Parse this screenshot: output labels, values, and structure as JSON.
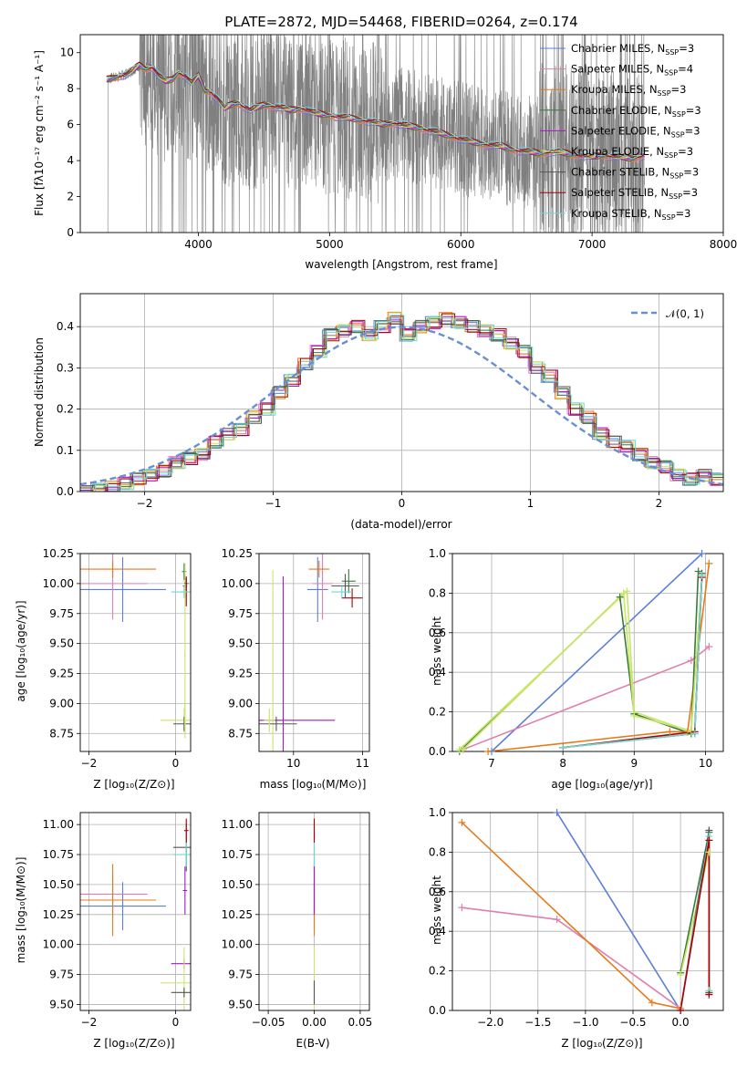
{
  "palette": {
    "chabrier_miles": "#5b7fd8",
    "salpeter_miles": "#e07fae",
    "kroupa_miles": "#e67a19",
    "chabrier_elodie": "#3a7a3a",
    "salpeter_elodie": "#a218c8",
    "kroupa_elodie": "#c8e66a",
    "chabrier_stelib": "#555555",
    "salpeter_stelib": "#aa0000",
    "kroupa_stelib": "#6fd6d6",
    "data_gray": "#808080",
    "normal": "#6a8ed4",
    "grid": "#b0b0b0"
  },
  "chart_data": [
    {
      "type": "line",
      "title": "PLATE=2872, MJD=54468, FIBERID=0264, z=0.174",
      "xlabel": "wavelength [Angstrom, rest frame]",
      "ylabel": "Flux [fλ10⁻¹⁷ erg cm⁻² s⁻¹ A⁻¹]",
      "xlim": [
        3100,
        8000
      ],
      "ylim": [
        0,
        11
      ],
      "xticks": [
        "4000",
        "5000",
        "6000",
        "7000",
        "8000"
      ],
      "yticks": [
        "0",
        "2",
        "4",
        "6",
        "8",
        "10"
      ],
      "grid": false,
      "legend_position": "upper right",
      "legend": [
        {
          "main": "Chabrier MILES, N",
          "sub": "SSP",
          "tail": "=3",
          "color_key": "chabrier_miles"
        },
        {
          "main": "Salpeter MILES, N",
          "sub": "SSP",
          "tail": "=4",
          "color_key": "salpeter_miles"
        },
        {
          "main": "Kroupa MILES, N",
          "sub": "SSP",
          "tail": "=3",
          "color_key": "kroupa_miles"
        },
        {
          "main": "Chabrier ELODIE, N",
          "sub": "SSP",
          "tail": "=3",
          "color_key": "chabrier_elodie"
        },
        {
          "main": "Salpeter ELODIE, N",
          "sub": "SSP",
          "tail": "=3",
          "color_key": "salpeter_elodie"
        },
        {
          "main": "Kroupa ELODIE, N",
          "sub": "SSP",
          "tail": "=3",
          "color_key": "kroupa_elodie"
        },
        {
          "main": "Chabrier STELIB, N",
          "sub": "SSP",
          "tail": "=3",
          "color_key": "chabrier_stelib"
        },
        {
          "main": "Salpeter STELIB, N",
          "sub": "SSP",
          "tail": "=3",
          "color_key": "salpeter_stelib"
        },
        {
          "main": "Kroupa STELIB, N",
          "sub": "SSP",
          "tail": "=3",
          "color_key": "kroupa_stelib"
        }
      ],
      "model_continuum": {
        "x": [
          3300,
          3350,
          3400,
          3450,
          3500,
          3550,
          3600,
          3650,
          3700,
          3750,
          3800,
          3850,
          3900,
          3950,
          4000,
          4050,
          4100,
          4150,
          4200,
          4250,
          4300,
          4350,
          4400,
          4500,
          4600,
          4700,
          4800,
          4900,
          5000,
          5100,
          5200,
          5300,
          5400,
          5500,
          5600,
          5700,
          5800,
          5900,
          6000,
          6100,
          6200,
          6300,
          6400,
          6500,
          6600,
          6700,
          6800,
          6900,
          7000,
          7100,
          7200,
          7300,
          7400
        ],
        "y": [
          8.5,
          8.6,
          8.7,
          8.8,
          9.0,
          9.3,
          9.1,
          9.2,
          8.7,
          8.4,
          8.5,
          8.9,
          8.7,
          8.3,
          8.7,
          7.9,
          7.8,
          7.4,
          6.9,
          7.1,
          7.2,
          7.0,
          6.8,
          7.1,
          7.0,
          6.8,
          6.9,
          6.6,
          6.5,
          6.4,
          6.3,
          6.2,
          6.0,
          6.1,
          5.9,
          5.8,
          5.6,
          5.4,
          5.2,
          5.0,
          4.9,
          4.8,
          4.6,
          4.5,
          4.4,
          4.5,
          4.4,
          4.3,
          4.2,
          4.3,
          4.2,
          4.1,
          4.3
        ]
      },
      "noisy_data_range": [
        3300,
        7400
      ]
    },
    {
      "type": "step",
      "xlabel": "(data-model)/error",
      "ylabel": "Normed distribution",
      "xlim": [
        -2.5,
        2.5
      ],
      "ylim": [
        0,
        0.48
      ],
      "xticks": [
        "−2",
        "−1",
        "0",
        "1",
        "2"
      ],
      "yticks": [
        "0.0",
        "0.1",
        "0.2",
        "0.3",
        "0.4"
      ],
      "grid": true,
      "legend_position": "upper right",
      "normal_label": "𝒩(0, 1)",
      "bin_edges": [
        -2.5,
        -2.4,
        -2.3,
        -2.2,
        -2.1,
        -2.0,
        -1.9,
        -1.8,
        -1.7,
        -1.6,
        -1.5,
        -1.4,
        -1.3,
        -1.2,
        -1.1,
        -1.0,
        -0.9,
        -0.8,
        -0.7,
        -0.6,
        -0.5,
        -0.4,
        -0.3,
        -0.2,
        -0.1,
        0.0,
        0.1,
        0.2,
        0.3,
        0.4,
        0.5,
        0.6,
        0.7,
        0.8,
        0.9,
        1.0,
        1.1,
        1.2,
        1.3,
        1.4,
        1.5,
        1.6,
        1.7,
        1.8,
        1.9,
        2.0,
        2.1,
        2.2,
        2.3,
        2.4,
        2.5
      ],
      "base_density": [
        0.0,
        0.005,
        0.01,
        0.02,
        0.03,
        0.04,
        0.05,
        0.07,
        0.08,
        0.09,
        0.12,
        0.14,
        0.15,
        0.18,
        0.2,
        0.24,
        0.27,
        0.31,
        0.34,
        0.38,
        0.39,
        0.4,
        0.38,
        0.4,
        0.42,
        0.38,
        0.4,
        0.41,
        0.42,
        0.41,
        0.4,
        0.39,
        0.38,
        0.36,
        0.34,
        0.3,
        0.28,
        0.24,
        0.2,
        0.18,
        0.14,
        0.12,
        0.11,
        0.09,
        0.07,
        0.06,
        0.04,
        0.03,
        0.04,
        0.03
      ]
    },
    {
      "type": "error_bars",
      "xlabel": "Z [log₁₀(Z/Z⊙)]",
      "ylabel": "age  [log₁₀(age/yr)]",
      "xlim": [
        -2.2,
        0.35
      ],
      "ylim": [
        8.6,
        10.25
      ],
      "xticks": [
        "−2",
        "0"
      ],
      "yticks": [
        "8.75",
        "9.00",
        "9.25",
        "9.50",
        "9.75",
        "10.00",
        "10.25"
      ],
      "grid": true,
      "points": [
        {
          "x": -1.22,
          "y": 9.95,
          "xerr": 1.0,
          "yerr": 0.27,
          "color_key": "chabrier_miles"
        },
        {
          "x": -1.45,
          "y": 10.0,
          "xerr": 0.8,
          "yerr": 0.3,
          "color_key": "salpeter_miles"
        },
        {
          "x": -1.45,
          "y": 10.12,
          "xerr": 1.0,
          "yerr": 0.07,
          "color_key": "kroupa_miles"
        },
        {
          "x": 0.2,
          "y": 10.1,
          "xerr": 0.05,
          "yerr": 0.07,
          "color_key": "chabrier_elodie"
        },
        {
          "x": 0.22,
          "y": 9.98,
          "xerr": 0.05,
          "yerr": 0.1,
          "color_key": "salpeter_elodie"
        },
        {
          "x": 0.22,
          "y": 10.02,
          "xerr": 0.05,
          "yerr": 0.15,
          "color_key": "kroupa_elodie"
        },
        {
          "x": 0.25,
          "y": 10.0,
          "xerr": 0.05,
          "yerr": 0.06,
          "color_key": "chabrier_stelib"
        },
        {
          "x": 0.25,
          "y": 9.93,
          "xerr": 0.05,
          "yerr": 0.12,
          "color_key": "salpeter_stelib"
        },
        {
          "x": 0.2,
          "y": 9.93,
          "xerr": 0.3,
          "yerr": 0.05,
          "color_key": "kroupa_stelib"
        },
        {
          "x": 0.2,
          "y": 8.86,
          "xerr": 0.55,
          "yerr": 0.1,
          "color_key": "kroupa_elodie"
        },
        {
          "x": 0.2,
          "y": 8.83,
          "xerr": 0.25,
          "yerr": 0.06,
          "color_key": "chabrier_stelib"
        },
        {
          "x": 0.22,
          "y": 8.86,
          "xerr": 0.02,
          "yerr": 0.15,
          "color_key": "kroupa_elodie"
        },
        {
          "x": 0.22,
          "y": 9.4,
          "xerr": 0.02,
          "yerr": 0.6,
          "color_key": "kroupa_elodie"
        }
      ]
    },
    {
      "type": "error_bars",
      "xlabel": "mass [log₁₀(M/M⊙)]",
      "xlim": [
        9.5,
        11.1
      ],
      "ylim": [
        8.6,
        10.25
      ],
      "xticks": [
        "10",
        "11"
      ],
      "yticks": [
        "8.75",
        "9.00",
        "9.25",
        "9.50",
        "9.75",
        "10.00",
        "10.25"
      ],
      "grid": true,
      "points": [
        {
          "x": 10.35,
          "y": 9.95,
          "xerr": 0.15,
          "yerr": 0.27,
          "color_key": "chabrier_miles"
        },
        {
          "x": 10.42,
          "y": 10.0,
          "xerr": 0.15,
          "yerr": 0.3,
          "color_key": "salpeter_miles"
        },
        {
          "x": 10.37,
          "y": 10.12,
          "xerr": 0.15,
          "yerr": 0.07,
          "color_key": "kroupa_miles"
        },
        {
          "x": 10.8,
          "y": 10.02,
          "xerr": 0.1,
          "yerr": 0.1,
          "color_key": "chabrier_elodie"
        },
        {
          "x": 10.85,
          "y": 9.88,
          "xerr": 0.15,
          "yerr": 0.08,
          "color_key": "salpeter_stelib"
        },
        {
          "x": 10.75,
          "y": 9.98,
          "xerr": 0.2,
          "yerr": 0.1,
          "color_key": "chabrier_stelib"
        },
        {
          "x": 10.7,
          "y": 9.93,
          "xerr": 0.15,
          "yerr": 0.05,
          "color_key": "kroupa_stelib"
        },
        {
          "x": 9.7,
          "y": 8.86,
          "xerr": 0.1,
          "yerr": 1.25,
          "color_key": "kroupa_elodie"
        },
        {
          "x": 9.85,
          "y": 8.86,
          "xerr": 0.75,
          "yerr": 1.2,
          "color_key": "salpeter_elodie"
        },
        {
          "x": 9.75,
          "y": 8.83,
          "xerr": 0.3,
          "yerr": 0.06,
          "color_key": "chabrier_stelib"
        },
        {
          "x": 9.65,
          "y": 8.86,
          "xerr": 0.08,
          "yerr": 0.1,
          "color_key": "kroupa_elodie"
        }
      ]
    },
    {
      "type": "line",
      "xlabel": "age  [log₁₀(age/yr)]",
      "ylabel": "mass weight",
      "xlim": [
        6.45,
        10.25
      ],
      "ylim": [
        0,
        1
      ],
      "xticks": [
        "7",
        "8",
        "9",
        "10"
      ],
      "yticks": [
        "0.0",
        "0.2",
        "0.4",
        "0.6",
        "0.8",
        "1.0"
      ],
      "grid": true,
      "series": [
        {
          "x": [
            7.0,
            9.95
          ],
          "y": [
            0.0,
            1.0
          ],
          "color_key": "chabrier_miles"
        },
        {
          "x": [
            6.6,
            9.8,
            10.05
          ],
          "y": [
            0.01,
            0.46,
            0.53
          ],
          "color_key": "salpeter_miles"
        },
        {
          "x": [
            6.95,
            9.5,
            9.75,
            10.05
          ],
          "y": [
            0.0,
            0.1,
            0.1,
            0.95
          ],
          "color_key": "kroupa_miles"
        },
        {
          "x": [
            6.55,
            8.8,
            9.0,
            9.8,
            9.9
          ],
          "y": [
            0.0,
            0.78,
            0.19,
            0.09,
            0.91
          ],
          "color_key": "chabrier_elodie"
        },
        {
          "x": [
            6.6,
            8.85,
            9.0,
            9.85,
            9.95
          ],
          "y": [
            0.01,
            0.8,
            0.18,
            0.1,
            0.9
          ],
          "color_key": "kroupa_elodie"
        },
        {
          "x": [
            6.55,
            8.9,
            9.0,
            9.8,
            9.95
          ],
          "y": [
            0.01,
            0.81,
            0.2,
            0.1,
            0.88
          ],
          "color_key": "kroupa_elodie"
        },
        {
          "x": [
            8.0,
            9.85,
            9.95
          ],
          "y": [
            0.02,
            0.09,
            0.9
          ],
          "color_key": "chabrier_stelib"
        },
        {
          "x": [
            8.0,
            9.85,
            9.95
          ],
          "y": [
            0.02,
            0.1,
            0.88
          ],
          "color_key": "salpeter_stelib"
        },
        {
          "x": [
            8.0,
            9.85,
            9.95
          ],
          "y": [
            0.02,
            0.09,
            0.89
          ],
          "color_key": "kroupa_stelib"
        }
      ]
    },
    {
      "type": "error_bars",
      "xlabel": "Z [log₁₀(Z/Z⊙)]",
      "ylabel": "mass [log₁₀(M/M⊙)]",
      "xlim": [
        -2.2,
        0.35
      ],
      "ylim": [
        9.45,
        11.1
      ],
      "xticks": [
        "−2",
        "0"
      ],
      "yticks": [
        "9.50",
        "9.75",
        "10.00",
        "10.25",
        "10.50",
        "10.75",
        "11.00"
      ],
      "grid": true,
      "points": [
        {
          "x": -1.22,
          "y": 10.32,
          "xerr": 1.0,
          "yerr": 0.2,
          "color_key": "chabrier_miles"
        },
        {
          "x": -1.45,
          "y": 10.42,
          "xerr": 0.8,
          "yerr": 0.18,
          "color_key": "salpeter_miles"
        },
        {
          "x": -1.45,
          "y": 10.37,
          "xerr": 1.0,
          "yerr": 0.3,
          "color_key": "kroupa_miles"
        },
        {
          "x": 0.25,
          "y": 10.81,
          "xerr": 0.3,
          "yerr": 0.2,
          "color_key": "chabrier_stelib"
        },
        {
          "x": 0.25,
          "y": 10.75,
          "xerr": 0.3,
          "yerr": 0.1,
          "color_key": "kroupa_stelib"
        },
        {
          "x": 0.25,
          "y": 10.95,
          "xerr": 0.05,
          "yerr": 0.1,
          "color_key": "salpeter_stelib"
        },
        {
          "x": 0.22,
          "y": 10.45,
          "xerr": 0.05,
          "yerr": 0.2,
          "color_key": "salpeter_elodie"
        },
        {
          "x": 0.2,
          "y": 9.84,
          "xerr": 0.3,
          "yerr": 0.04,
          "color_key": "salpeter_elodie"
        },
        {
          "x": 0.2,
          "y": 9.68,
          "xerr": 0.55,
          "yerr": 0.3,
          "color_key": "kroupa_elodie"
        },
        {
          "x": 0.2,
          "y": 9.6,
          "xerr": 0.3,
          "yerr": 0.04,
          "color_key": "chabrier_stelib"
        }
      ]
    },
    {
      "type": "error_bars",
      "xlabel": "E(B-V)",
      "xlim": [
        -0.06,
        0.06
      ],
      "ylim": [
        9.45,
        11.1
      ],
      "xticks": [
        "−0.05",
        "0.00",
        "0.05"
      ],
      "yticks": [
        "9.50",
        "9.75",
        "10.00",
        "10.25",
        "10.50",
        "10.75",
        "11.00"
      ],
      "grid": true,
      "points": [
        {
          "x": 0.0,
          "y": 10.32,
          "xerr": 0.0,
          "yerr": 0.2,
          "color_key": "chabrier_miles"
        },
        {
          "x": 0.0,
          "y": 10.42,
          "xerr": 0.0,
          "yerr": 0.18,
          "color_key": "salpeter_miles"
        },
        {
          "x": 0.0,
          "y": 10.37,
          "xerr": 0.0,
          "yerr": 0.3,
          "color_key": "kroupa_miles"
        },
        {
          "x": 0.0,
          "y": 10.81,
          "xerr": 0.0,
          "yerr": 0.2,
          "color_key": "chabrier_stelib"
        },
        {
          "x": 0.0,
          "y": 10.75,
          "xerr": 0.0,
          "yerr": 0.1,
          "color_key": "kroupa_stelib"
        },
        {
          "x": 0.0,
          "y": 10.95,
          "xerr": 0.0,
          "yerr": 0.1,
          "color_key": "salpeter_stelib"
        },
        {
          "x": 0.0,
          "y": 10.45,
          "xerr": 0.0,
          "yerr": 0.2,
          "color_key": "salpeter_elodie"
        },
        {
          "x": 0.0,
          "y": 9.68,
          "xerr": 0.0,
          "yerr": 0.3,
          "color_key": "kroupa_elodie"
        },
        {
          "x": 0.0,
          "y": 9.6,
          "xerr": 0.0,
          "yerr": 0.1,
          "color_key": "chabrier_stelib"
        }
      ]
    },
    {
      "type": "line",
      "xlabel": "Z [log₁₀(Z/Z⊙)]",
      "ylabel": "mass weight",
      "xlim": [
        -2.4,
        0.45
      ],
      "ylim": [
        0,
        1
      ],
      "xticks": [
        "−2.0",
        "−1.5",
        "−1.0",
        "−0.5",
        "0.0"
      ],
      "yticks": [
        "0.0",
        "0.2",
        "0.4",
        "0.6",
        "0.8",
        "1.0"
      ],
      "grid": true,
      "series": [
        {
          "x": [
            -1.3,
            0.0
          ],
          "y": [
            1.0,
            0.0
          ],
          "color_key": "chabrier_miles"
        },
        {
          "x": [
            -2.3,
            -1.3,
            0.0
          ],
          "y": [
            0.52,
            0.46,
            0.01
          ],
          "color_key": "salpeter_miles"
        },
        {
          "x": [
            -2.3,
            -0.3,
            0.0
          ],
          "y": [
            0.95,
            0.04,
            0.01
          ],
          "color_key": "kroupa_miles"
        },
        {
          "x": [
            0.0,
            0.3,
            0.3
          ],
          "y": [
            0.19,
            0.9,
            0.09
          ],
          "color_key": "chabrier_elodie"
        },
        {
          "x": [
            0.0,
            0.3,
            0.3
          ],
          "y": [
            0.18,
            0.8,
            0.1
          ],
          "color_key": "kroupa_elodie"
        },
        {
          "x": [
            0.0,
            0.3,
            0.3
          ],
          "y": [
            0.0,
            0.91,
            0.09
          ],
          "color_key": "chabrier_stelib"
        },
        {
          "x": [
            0.0,
            0.3,
            0.3
          ],
          "y": [
            0.0,
            0.88,
            0.1
          ],
          "color_key": "kroupa_stelib"
        },
        {
          "x": [
            0.0,
            0.3,
            0.3
          ],
          "y": [
            0.0,
            0.86,
            0.08
          ],
          "color_key": "salpeter_stelib"
        }
      ]
    }
  ]
}
